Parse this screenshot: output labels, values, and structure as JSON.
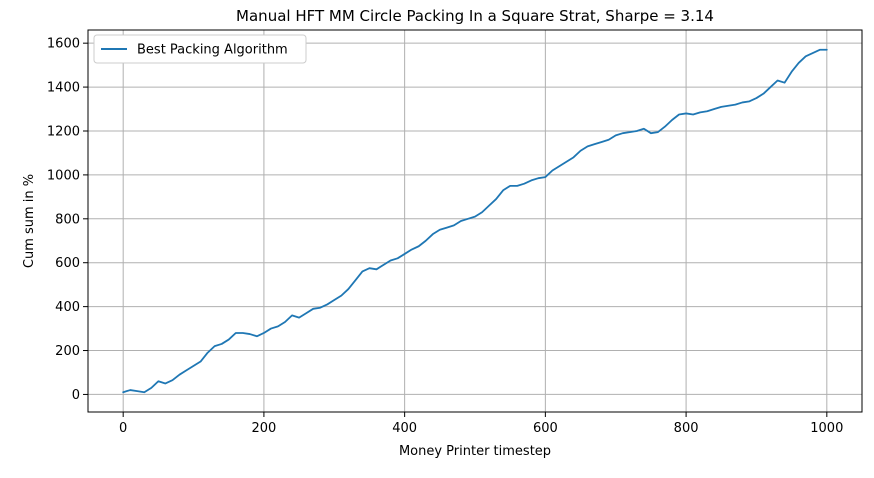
{
  "chart_data": {
    "type": "line",
    "title": "Manual HFT MM Circle Packing In a Square Strat, Sharpe = 3.14",
    "xlabel": "Money Printer timestep",
    "ylabel": "Cum sum in %",
    "xlim": [
      -50,
      1050
    ],
    "ylim": [
      -80,
      1660
    ],
    "x_ticks": [
      0,
      200,
      400,
      600,
      800,
      1000
    ],
    "y_ticks": [
      0,
      200,
      400,
      600,
      800,
      1000,
      1200,
      1400,
      1600
    ],
    "grid": true,
    "legend_position": "top-left",
    "series": [
      {
        "name": "Best Packing Algorithm",
        "color": "#1f77b4",
        "x": [
          0,
          10,
          20,
          30,
          40,
          50,
          60,
          70,
          80,
          90,
          100,
          110,
          120,
          130,
          140,
          150,
          160,
          170,
          180,
          190,
          200,
          210,
          220,
          230,
          240,
          250,
          260,
          270,
          280,
          290,
          300,
          310,
          320,
          330,
          340,
          350,
          360,
          370,
          380,
          390,
          400,
          410,
          420,
          430,
          440,
          450,
          460,
          470,
          480,
          490,
          500,
          510,
          520,
          530,
          540,
          550,
          560,
          570,
          580,
          590,
          600,
          610,
          620,
          630,
          640,
          650,
          660,
          670,
          680,
          690,
          700,
          710,
          720,
          730,
          740,
          750,
          760,
          770,
          780,
          790,
          800,
          810,
          820,
          830,
          840,
          850,
          860,
          870,
          880,
          890,
          900,
          910,
          920,
          930,
          940,
          950,
          960,
          970,
          980,
          990,
          1000
        ],
        "y": [
          10,
          20,
          15,
          10,
          30,
          60,
          50,
          65,
          90,
          110,
          130,
          150,
          190,
          220,
          230,
          250,
          280,
          280,
          275,
          265,
          280,
          300,
          310,
          330,
          360,
          350,
          370,
          390,
          395,
          410,
          430,
          450,
          480,
          520,
          560,
          575,
          570,
          590,
          610,
          620,
          640,
          660,
          675,
          700,
          730,
          750,
          760,
          770,
          790,
          800,
          810,
          830,
          860,
          890,
          930,
          950,
          950,
          960,
          975,
          985,
          990,
          1020,
          1040,
          1060,
          1080,
          1110,
          1130,
          1140,
          1150,
          1160,
          1180,
          1190,
          1195,
          1200,
          1210,
          1190,
          1195,
          1220,
          1250,
          1275,
          1280,
          1275,
          1285,
          1290,
          1300,
          1310,
          1315,
          1320,
          1330,
          1335,
          1350,
          1370,
          1400,
          1430,
          1420,
          1470,
          1510,
          1540,
          1555,
          1570,
          1570
        ]
      }
    ]
  }
}
